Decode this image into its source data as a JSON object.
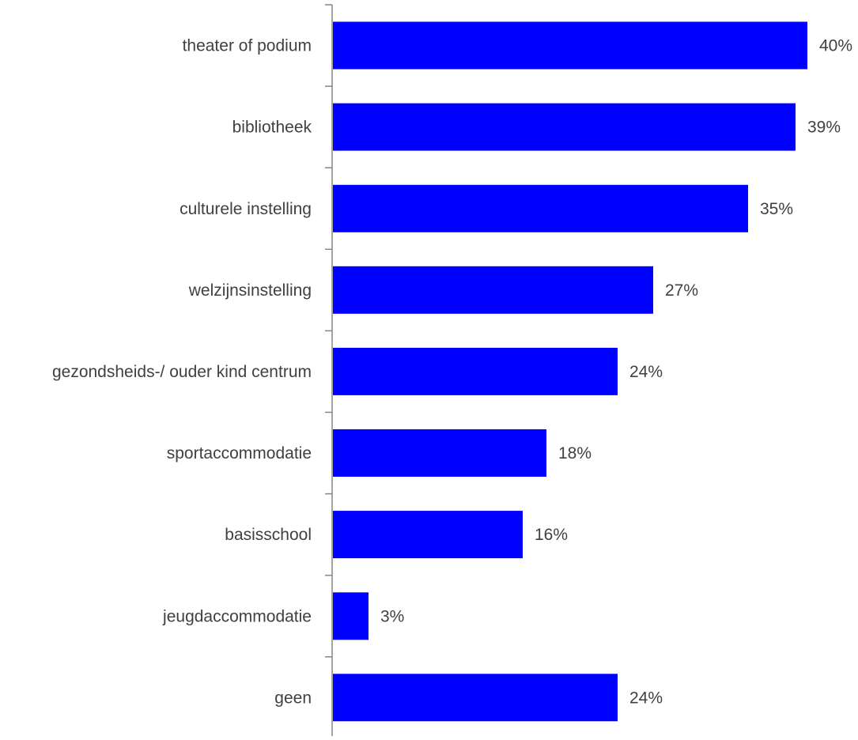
{
  "chart_data": {
    "type": "bar",
    "orientation": "horizontal",
    "categories": [
      "theater of podium",
      "bibliotheek",
      "culturele instelling",
      "welzijnsinstelling",
      "gezondsheids-/ ouder kind centrum",
      "sportaccommodatie",
      "basisschool",
      "jeugdaccommodatie",
      "geen"
    ],
    "values": [
      40,
      39,
      35,
      27,
      24,
      18,
      16,
      3,
      24
    ],
    "value_labels": [
      "40%",
      "39%",
      "35%",
      "27%",
      "24%",
      "18%",
      "16%",
      "3%",
      "24%"
    ],
    "unit": "%",
    "xlim": [
      0,
      40
    ],
    "bar_color": "#0000FF",
    "axis_color": "#868686",
    "label_color": "#404040",
    "grid": false,
    "legend": "none"
  }
}
